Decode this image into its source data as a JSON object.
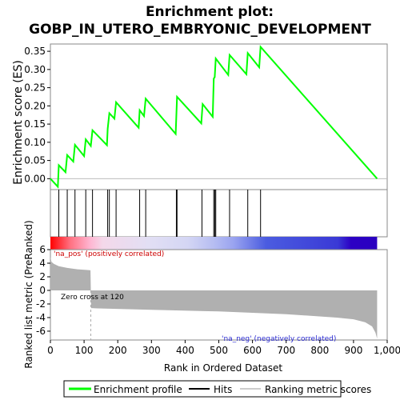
{
  "chart_data": {
    "type": "line",
    "title_lines": [
      "Enrichment plot:",
      "GOBP_IN_UTERO_EMBRYONIC_DEVELOPMENT"
    ],
    "es_panel": {
      "ylabel": "Enrichment score (ES)",
      "ylim": [
        -0.03,
        0.37
      ],
      "yticks": [
        "0.00",
        "0.05",
        "0.10",
        "0.15",
        "0.20",
        "0.25",
        "0.30",
        "0.35"
      ],
      "ytick_values": [
        0,
        0.05,
        0.1,
        0.15,
        0.2,
        0.25,
        0.3,
        0.35
      ],
      "line_color": "#00ff00",
      "points": [
        [
          0,
          0.0
        ],
        [
          22,
          -0.022
        ],
        [
          25,
          0.037
        ],
        [
          45,
          0.018
        ],
        [
          50,
          0.065
        ],
        [
          68,
          0.047
        ],
        [
          73,
          0.093
        ],
        [
          100,
          0.062
        ],
        [
          105,
          0.108
        ],
        [
          120,
          0.09
        ],
        [
          125,
          0.133
        ],
        [
          168,
          0.092
        ],
        [
          170,
          0.137
        ],
        [
          175,
          0.18
        ],
        [
          190,
          0.165
        ],
        [
          195,
          0.21
        ],
        [
          262,
          0.14
        ],
        [
          265,
          0.188
        ],
        [
          278,
          0.172
        ],
        [
          283,
          0.22
        ],
        [
          372,
          0.123
        ],
        [
          376,
          0.225
        ],
        [
          448,
          0.152
        ],
        [
          452,
          0.205
        ],
        [
          482,
          0.17
        ],
        [
          485,
          0.275
        ],
        [
          488,
          0.279
        ],
        [
          491,
          0.33
        ],
        [
          528,
          0.285
        ],
        [
          532,
          0.34
        ],
        [
          582,
          0.287
        ],
        [
          586,
          0.345
        ],
        [
          620,
          0.306
        ],
        [
          624,
          0.362
        ],
        [
          970,
          0.0
        ]
      ]
    },
    "hits": [
      25,
      50,
      73,
      105,
      125,
      170,
      175,
      195,
      265,
      283,
      374,
      376,
      450,
      485,
      488,
      491,
      532,
      586,
      624
    ],
    "metric_panel": {
      "ylabel": "Ranked list metric (PreRanked)",
      "ylim": [
        -7.3,
        6
      ],
      "yticks": [
        "-6",
        "-4",
        "-2",
        "0",
        "2",
        "4",
        "6"
      ],
      "ytick_values": [
        -6,
        -4,
        -2,
        0,
        2,
        4,
        6
      ],
      "zero_cross_label": "Zero cross at 120",
      "zero_cross": 120,
      "pos_label": "'na_pos' (positively correlated)",
      "neg_label": "'na_neg' (negatively correlated)",
      "profile": [
        [
          0,
          4.9
        ],
        [
          3,
          4.2
        ],
        [
          10,
          3.9
        ],
        [
          25,
          3.55
        ],
        [
          50,
          3.3
        ],
        [
          80,
          3.1
        ],
        [
          110,
          3.0
        ],
        [
          119,
          2.95
        ],
        [
          121,
          -2.6
        ],
        [
          140,
          -2.65
        ],
        [
          300,
          -2.85
        ],
        [
          500,
          -3.1
        ],
        [
          700,
          -3.5
        ],
        [
          850,
          -4.0
        ],
        [
          900,
          -4.25
        ],
        [
          935,
          -4.7
        ],
        [
          955,
          -5.3
        ],
        [
          965,
          -6.2
        ],
        [
          970,
          -7.1
        ]
      ]
    },
    "xaxis": {
      "xlabel": "Rank in Ordered Dataset",
      "xlim": [
        0,
        1000
      ],
      "xticks": [
        "0",
        "100",
        "200",
        "300",
        "400",
        "500",
        "600",
        "700",
        "800",
        "900",
        "1,000"
      ],
      "xtick_values": [
        0,
        100,
        200,
        300,
        400,
        500,
        600,
        700,
        800,
        900,
        1000
      ],
      "n_genes": 970
    },
    "legend": {
      "placement": "bottom",
      "entries": [
        "Enrichment profile",
        "Hits",
        "Ranking metric scores"
      ]
    }
  }
}
